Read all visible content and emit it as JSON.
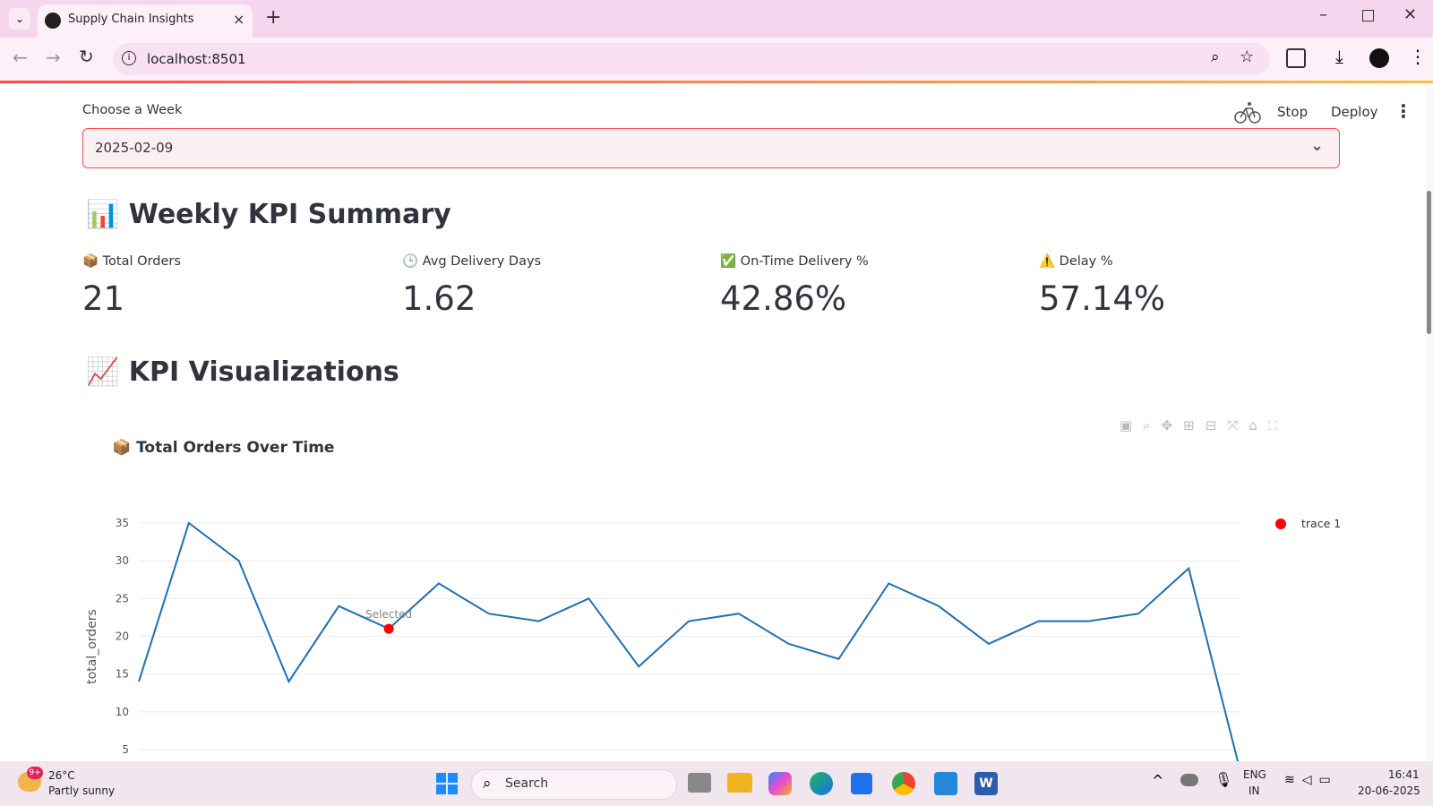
{
  "browser": {
    "tab_title": "Supply Chain Insights",
    "url": "localhost:8501"
  },
  "app": {
    "header": {
      "stop": "Stop",
      "deploy": "Deploy"
    },
    "week_select": {
      "label": "Choose a Week",
      "value": "2025-02-09"
    },
    "kpi_heading": "📊 Weekly KPI Summary",
    "metrics": [
      {
        "label": "📦 Total Orders",
        "value": "21"
      },
      {
        "label": "🕒 Avg Delivery Days",
        "value": "1.62"
      },
      {
        "label": "✅ On-Time Delivery %",
        "value": "42.86%"
      },
      {
        "label": "⚠️ Delay %",
        "value": "57.14%"
      }
    ],
    "viz_heading": "📈 KPI Visualizations"
  },
  "chart_data": {
    "type": "line",
    "title": "📦 Total Orders Over Time",
    "y_label": "total_orders",
    "annotation": "Selected",
    "categories": [
      null,
      null,
      null,
      null,
      null,
      null,
      null,
      null,
      null,
      null,
      null,
      null,
      null,
      null,
      null,
      null,
      null,
      null,
      null,
      null,
      null,
      null,
      null
    ],
    "series": [
      {
        "color": "#1f6fb4",
        "values": [
          14,
          35,
          30,
          14,
          24,
          21,
          27,
          23,
          22,
          25,
          16,
          22,
          23,
          19,
          17,
          27,
          24,
          19,
          22,
          22,
          23,
          29,
          3
        ]
      },
      {
        "name": "trace 1",
        "color": "#ff0000",
        "values": [
          null,
          null,
          null,
          null,
          null,
          21,
          null,
          null,
          null,
          null,
          null,
          null,
          null,
          null,
          null,
          null,
          null,
          null,
          null,
          null,
          null,
          null,
          null
        ]
      }
    ],
    "ylim": [
      0,
      37
    ],
    "yticks": [
      5,
      10,
      15,
      20,
      25,
      30,
      35
    ],
    "grid": true
  },
  "taskbar": {
    "weather_badge": "9+",
    "temperature": "26°C",
    "weather": "Partly sunny",
    "search": "Search",
    "lang": "ENG",
    "region": "IN",
    "time": "16:41",
    "date": "20-06-2025"
  }
}
